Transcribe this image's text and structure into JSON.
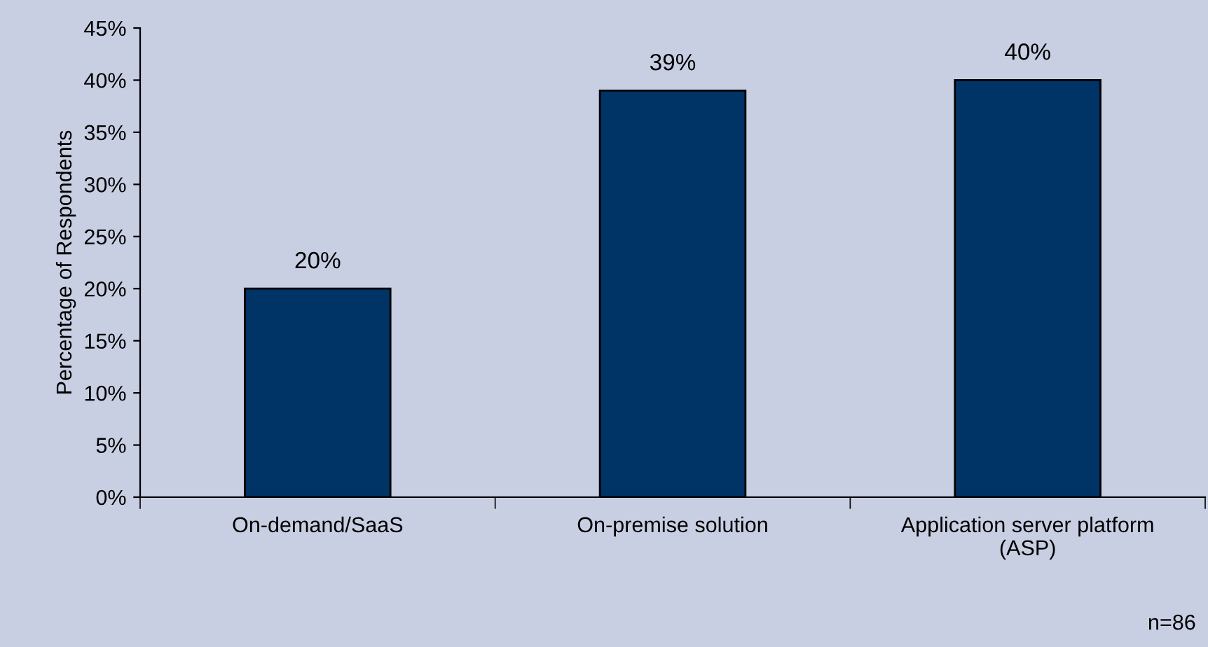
{
  "chart_data": {
    "type": "bar",
    "ylabel": "Percentage of Respondents",
    "categories": [
      "On-demand/SaaS",
      "On-premise solution",
      "Application server platform\n(ASP)"
    ],
    "values": [
      20,
      39,
      40
    ],
    "color": "#003366",
    "value_labels": [
      "20%",
      "39%",
      "40%"
    ],
    "ylim": [
      0,
      45
    ],
    "yticks": [
      {
        "value": 0,
        "label": "0%"
      },
      {
        "value": 5,
        "label": "5%"
      },
      {
        "value": 10,
        "label": "10%"
      },
      {
        "value": 15,
        "label": "15%"
      },
      {
        "value": 20,
        "label": "20%"
      },
      {
        "value": 25,
        "label": "25%"
      },
      {
        "value": 30,
        "label": "30%"
      },
      {
        "value": 35,
        "label": "35%"
      },
      {
        "value": 40,
        "label": "40%"
      },
      {
        "value": 45,
        "label": "45%"
      }
    ],
    "grid": false,
    "legend": false,
    "annotations": [
      "n=86"
    ]
  }
}
